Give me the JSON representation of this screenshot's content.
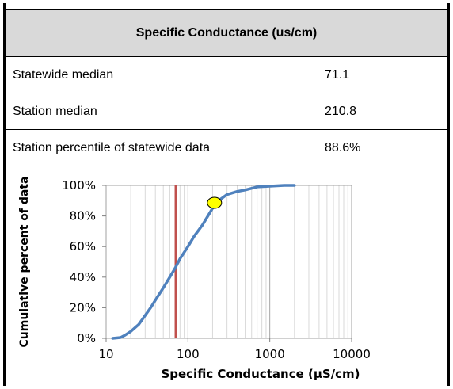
{
  "table": {
    "title": "Specific Conductance (us/cm)",
    "rows": [
      {
        "label": "Statewide median",
        "value": "71.1"
      },
      {
        "label": "Station median",
        "value": "210.8"
      },
      {
        "label": "Station percentile of statewide data",
        "value": "88.6%"
      }
    ]
  },
  "chart_data": {
    "type": "line",
    "xlabel": "Specific Conductance (µS/cm)",
    "ylabel": "Cumulative percent of data",
    "x_scale": "log",
    "xlim": [
      10,
      10000
    ],
    "ylim": [
      0,
      100
    ],
    "x_ticks": [
      "10",
      "100",
      "1000",
      "10000"
    ],
    "y_ticks": [
      "0%",
      "20%",
      "40%",
      "60%",
      "80%",
      "100%"
    ],
    "grid": true,
    "series": [
      {
        "color": "#4f81bd",
        "x": [
          12,
          15,
          17,
          20,
          25,
          30,
          35,
          40,
          50,
          60,
          70,
          80,
          100,
          120,
          150,
          180,
          210,
          250,
          300,
          400,
          500,
          700,
          1000,
          1500,
          2000
        ],
        "y": [
          0,
          0.5,
          2,
          4.5,
          9,
          15,
          20,
          25,
          33,
          40,
          46,
          52,
          60,
          67,
          74,
          81,
          87,
          91,
          94,
          96,
          97,
          99,
          99.5,
          100,
          100
        ]
      }
    ],
    "reference_line": {
      "x": 71.1,
      "color": "#c0504d"
    },
    "marker": {
      "x": 210.8,
      "y": 88.6,
      "color": "#ffff00"
    }
  }
}
